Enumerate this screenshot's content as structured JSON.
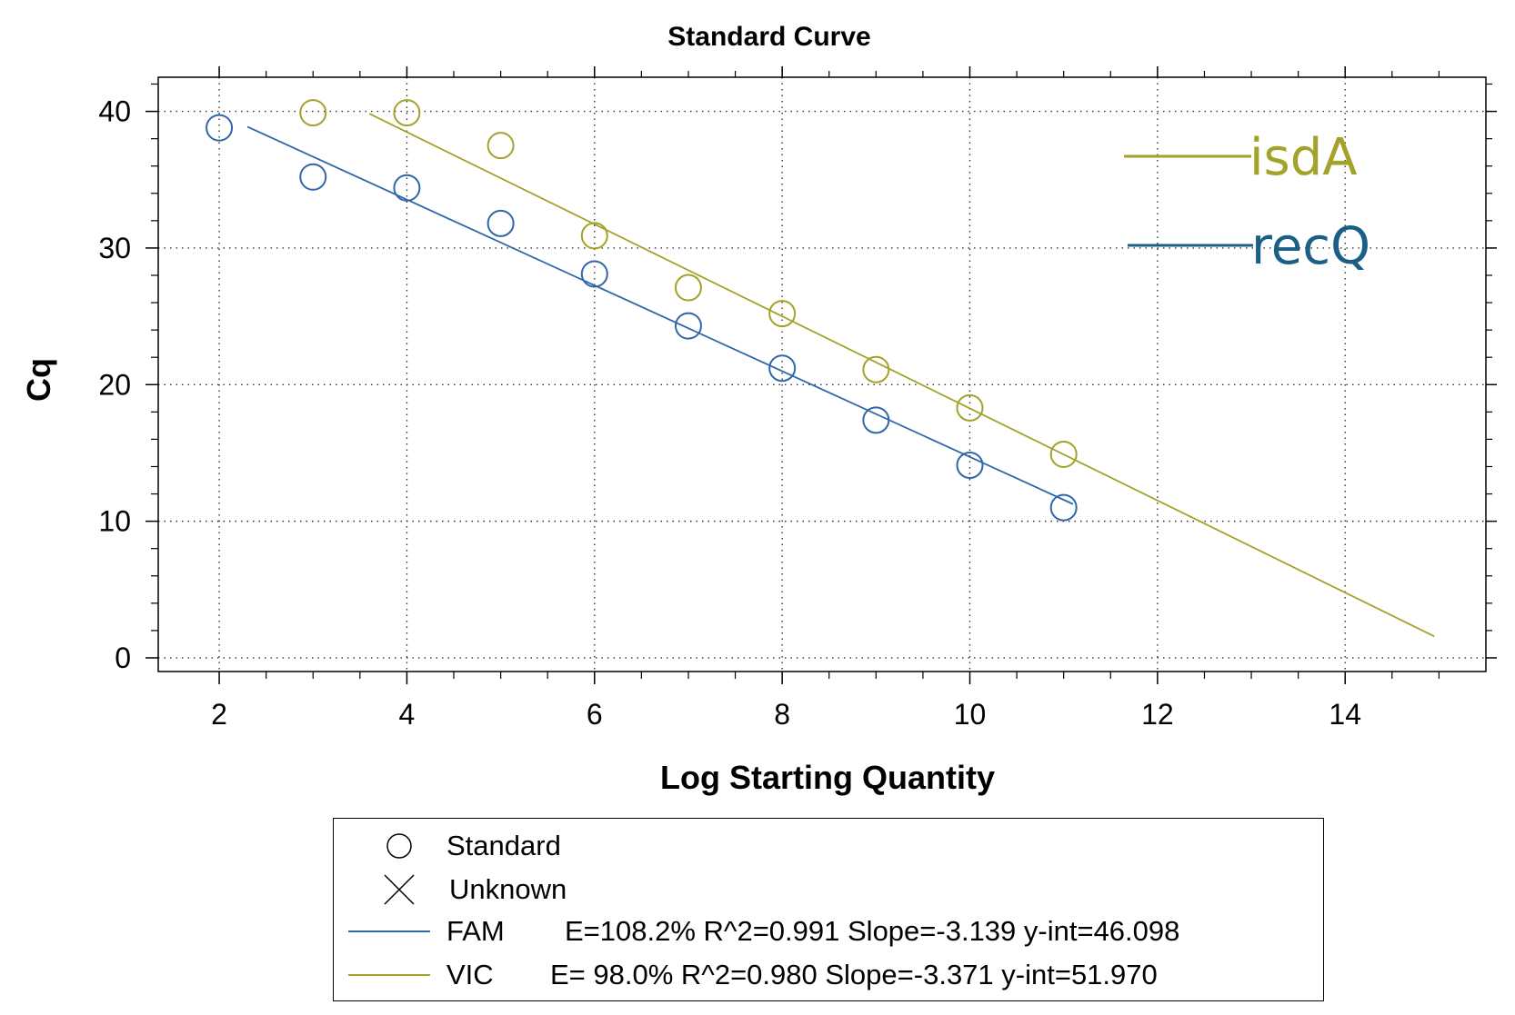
{
  "chart_data": {
    "type": "scatter",
    "title": "Standard Curve",
    "xlabel": "Log Starting Quantity",
    "ylabel": "Cq",
    "xlim": [
      1.35,
      15.5
    ],
    "ylim": [
      -1,
      42.5
    ],
    "xticks": [
      "2",
      "4",
      "6",
      "8",
      "10",
      "12",
      "14"
    ],
    "yticks": [
      "0",
      "10",
      "20",
      "30",
      "40"
    ],
    "grid": true,
    "series": [
      {
        "name": "FAM",
        "gene": "recQ",
        "color": "#2f67a8",
        "points": [
          {
            "x": 2,
            "y": 38.8
          },
          {
            "x": 3,
            "y": 35.2
          },
          {
            "x": 4,
            "y": 34.4
          },
          {
            "x": 5,
            "y": 31.8
          },
          {
            "x": 6,
            "y": 28.1
          },
          {
            "x": 7,
            "y": 24.3
          },
          {
            "x": 8,
            "y": 21.2
          },
          {
            "x": 9,
            "y": 17.4
          },
          {
            "x": 10,
            "y": 14.1
          },
          {
            "x": 11,
            "y": 11.0
          }
        ],
        "fit": {
          "slope": -3.139,
          "intercept": 46.098,
          "x_start": 2.3,
          "x_end": 11.1
        },
        "stats": "E=108.2% R^2=0.991 Slope=-3.139 y-int=46.098"
      },
      {
        "name": "VIC",
        "gene": "isdA",
        "color": "#a3a22a",
        "points": [
          {
            "x": 3,
            "y": 39.9
          },
          {
            "x": 4,
            "y": 39.9
          },
          {
            "x": 5,
            "y": 37.5
          },
          {
            "x": 6,
            "y": 30.9
          },
          {
            "x": 7,
            "y": 27.1
          },
          {
            "x": 8,
            "y": 25.2
          },
          {
            "x": 9,
            "y": 21.1
          },
          {
            "x": 10,
            "y": 18.3
          },
          {
            "x": 11,
            "y": 14.9
          }
        ],
        "fit": {
          "slope": -3.371,
          "intercept": 51.97,
          "x_start": 3.6,
          "x_end": 14.95
        },
        "stats": "E= 98.0% R^2=0.980 Slope=-3.371 y-int=51.970"
      }
    ],
    "annotations": [
      {
        "text": "isdA",
        "color": "#a3a22a"
      },
      {
        "text": "recQ",
        "color": "#1b5f86"
      }
    ]
  },
  "legend": {
    "standard_label": "Standard",
    "unknown_label": "Unknown",
    "fam_label": "FAM",
    "fam_stats": "E=108.2% R^2=0.991 Slope=-3.139 y-int=46.098",
    "vic_label": "VIC",
    "vic_stats": "E= 98.0% R^2=0.980 Slope=-3.371 y-int=51.970",
    "fam_color": "#2f67a8",
    "vic_color": "#a3a22a"
  }
}
